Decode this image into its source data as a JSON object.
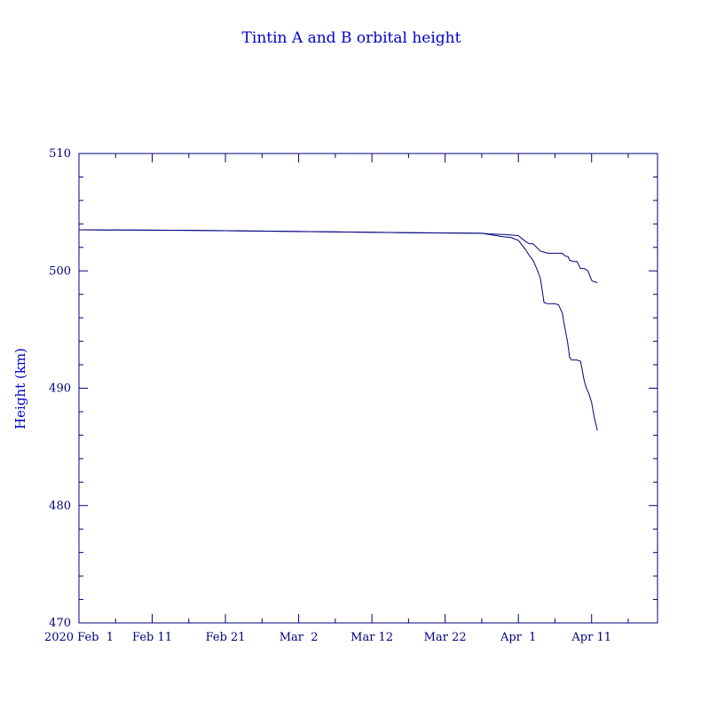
{
  "chart_data": {
    "type": "line",
    "title": "Tintin A and B orbital height",
    "xlabel": "",
    "ylabel": "Height (km)",
    "ylim": [
      470,
      510
    ],
    "xlim": [
      "2020-02-01",
      "2020-04-20"
    ],
    "yticks": [
      470,
      480,
      490,
      500,
      510
    ],
    "xticks": [
      {
        "date": "2020-02-01",
        "label": "2020 Feb  1"
      },
      {
        "date": "2020-02-11",
        "label": "Feb 11"
      },
      {
        "date": "2020-02-21",
        "label": "Feb 21"
      },
      {
        "date": "2020-03-02",
        "label": "Mar  2"
      },
      {
        "date": "2020-03-12",
        "label": "Mar 12"
      },
      {
        "date": "2020-03-22",
        "label": "Mar 22"
      },
      {
        "date": "2020-04-01",
        "label": "Apr  1"
      },
      {
        "date": "2020-04-11",
        "label": "Apr 11"
      }
    ],
    "grid": false,
    "line_color": "#00007f",
    "series": [
      {
        "x": [
          "2020-02-01",
          "2020-02-16",
          "2020-03-02",
          "2020-03-17",
          "2020-03-27",
          "2020-03-28",
          "2020-03-30",
          "2020-03-31",
          "2020-04-01",
          "2020-04-02",
          "2020-04-02.5",
          "2020-04-03",
          "2020-04-04",
          "2020-04-04.5",
          "2020-04-05",
          "2020-04-06",
          "2020-04-07",
          "2020-04-07.3",
          "2020-04-07.8",
          "2020-04-08",
          "2020-04-08.5",
          "2020-04-09",
          "2020-04-09.5",
          "2020-04-10",
          "2020-04-10.5",
          "2020-04-11",
          "2020-04-11.2",
          "2020-04-11.8"
        ],
        "y": [
          503.5,
          503.45,
          503.35,
          503.25,
          503.2,
          503.15,
          503.1,
          503.05,
          503.0,
          502.5,
          502.3,
          502.3,
          501.7,
          501.6,
          501.5,
          501.5,
          501.5,
          501.3,
          501.2,
          500.9,
          500.8,
          500.8,
          500.2,
          500.2,
          500.0,
          499.2,
          499.1,
          499.0
        ]
      },
      {
        "x": [
          "2020-02-01",
          "2020-02-16",
          "2020-03-02",
          "2020-03-17",
          "2020-03-27",
          "2020-03-28",
          "2020-03-30",
          "2020-03-31",
          "2020-04-01",
          "2020-04-02",
          "2020-04-02.5",
          "2020-04-03",
          "2020-04-03.5",
          "2020-04-04",
          "2020-04-04.5",
          "2020-04-05",
          "2020-04-06",
          "2020-04-06.5",
          "2020-04-07",
          "2020-04-07.3",
          "2020-04-07.7",
          "2020-04-08",
          "2020-04-08.3",
          "2020-04-09",
          "2020-04-09.5",
          "2020-04-10",
          "2020-04-10.3",
          "2020-04-10.6",
          "2020-04-11",
          "2020-04-11.4",
          "2020-04-11.8"
        ],
        "y": [
          503.5,
          503.45,
          503.35,
          503.25,
          503.2,
          503.1,
          502.9,
          502.85,
          502.6,
          501.8,
          501.3,
          500.9,
          500.2,
          499.4,
          497.3,
          497.2,
          497.2,
          497.1,
          496.4,
          495.3,
          494.0,
          492.6,
          492.4,
          492.4,
          492.3,
          490.6,
          490.0,
          489.6,
          488.8,
          487.4,
          486.4
        ]
      }
    ]
  }
}
